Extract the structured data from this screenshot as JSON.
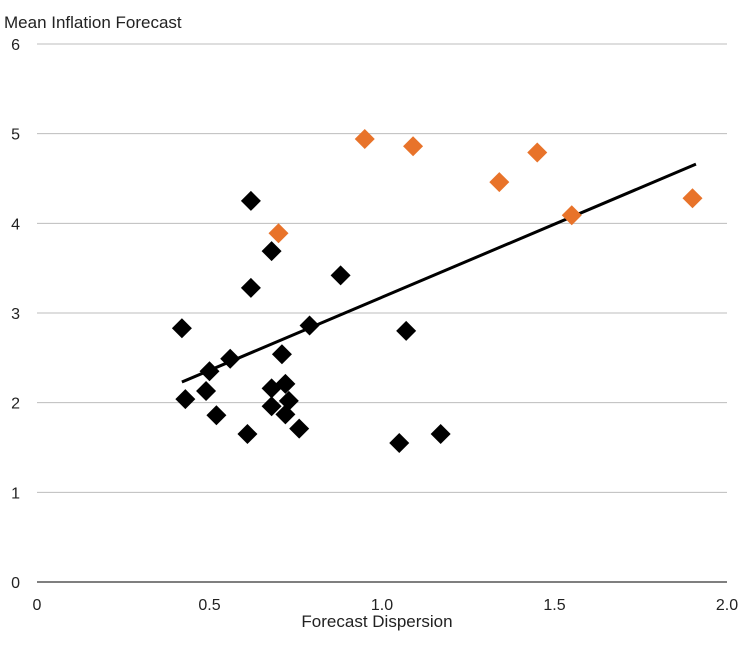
{
  "chart_data": {
    "type": "scatter",
    "title": "",
    "ylabel": "Mean Inflation Forecast",
    "xlabel": "Forecast Dispersion",
    "xlim": [
      0,
      2.0
    ],
    "ylim": [
      0,
      6
    ],
    "x_ticks": [
      "0",
      "0.5",
      "1.0",
      "1.5",
      "2.0"
    ],
    "y_ticks": [
      "0",
      "1",
      "2",
      "3",
      "4",
      "5",
      "6"
    ],
    "grid": "horizontal",
    "legend": "none",
    "series": [
      {
        "color": "#000000",
        "marker": "diamond",
        "points": [
          [
            0.42,
            2.83
          ],
          [
            0.43,
            2.04
          ],
          [
            0.49,
            2.13
          ],
          [
            0.5,
            2.35
          ],
          [
            0.52,
            1.86
          ],
          [
            0.56,
            2.49
          ],
          [
            0.61,
            1.65
          ],
          [
            0.62,
            4.25
          ],
          [
            0.62,
            3.28
          ],
          [
            0.68,
            3.69
          ],
          [
            0.68,
            2.16
          ],
          [
            0.68,
            1.96
          ],
          [
            0.71,
            2.54
          ],
          [
            0.72,
            2.21
          ],
          [
            0.72,
            1.87
          ],
          [
            0.73,
            2.02
          ],
          [
            0.76,
            1.71
          ],
          [
            0.79,
            2.86
          ],
          [
            0.88,
            3.42
          ],
          [
            1.05,
            1.55
          ],
          [
            1.07,
            2.8
          ],
          [
            1.17,
            1.65
          ]
        ]
      },
      {
        "color": "#E8732A",
        "marker": "diamond",
        "points": [
          [
            0.7,
            3.89
          ],
          [
            0.95,
            4.94
          ],
          [
            1.09,
            4.86
          ],
          [
            1.34,
            4.46
          ],
          [
            1.45,
            4.79
          ],
          [
            1.55,
            4.09
          ],
          [
            1.9,
            4.28
          ]
        ]
      }
    ],
    "trendline": {
      "color": "#000000",
      "points": [
        [
          0.42,
          2.23
        ],
        [
          1.91,
          4.66
        ]
      ]
    }
  }
}
